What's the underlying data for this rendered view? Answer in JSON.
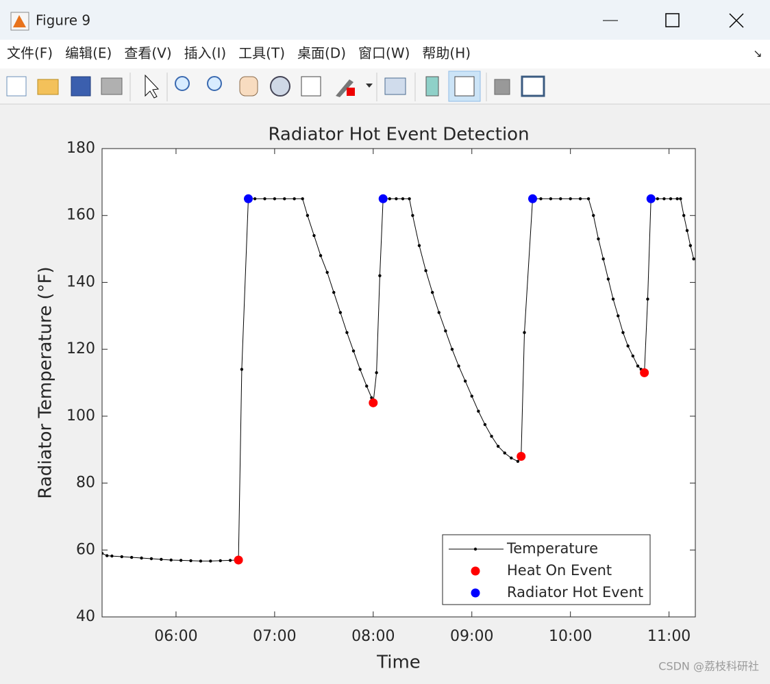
{
  "window": {
    "title": "Figure 9",
    "menu": [
      "文件(F)",
      "编辑(E)",
      "查看(V)",
      "插入(I)",
      "工具(T)",
      "桌面(D)",
      "窗口(W)",
      "帮助(H)"
    ]
  },
  "watermark": "CSDN @荔枝科研社",
  "chart_data": {
    "type": "line",
    "title": "Radiator Hot Event Detection",
    "x_label": "Time",
    "y_label": "Radiator Temperature (°F)",
    "xlim": [
      "05:15",
      "11:16"
    ],
    "xticks": [
      "06:00",
      "07:00",
      "08:00",
      "09:00",
      "10:00",
      "11:00"
    ],
    "ylim": [
      40,
      180
    ],
    "yticks": [
      40,
      60,
      80,
      100,
      120,
      140,
      160,
      180
    ],
    "grid": false,
    "legend": "lower right",
    "series": [
      {
        "name": "Temperature",
        "color": "#000000",
        "line": true,
        "marker": "dot",
        "x": [
          "05:15",
          "05:18",
          "05:21",
          "05:27",
          "05:33",
          "05:39",
          "05:45",
          "05:51",
          "05:57",
          "06:03",
          "06:09",
          "06:15",
          "06:21",
          "06:27",
          "06:33",
          "06:38",
          "06:40",
          "06:44",
          "06:48",
          "06:54",
          "07:00",
          "07:06",
          "07:12",
          "07:17",
          "07:20",
          "07:24",
          "07:28",
          "07:32",
          "07:36",
          "07:40",
          "07:44",
          "07:48",
          "07:52",
          "07:56",
          "07:59",
          "08:00",
          "08:02",
          "08:04",
          "08:06",
          "08:10",
          "08:14",
          "08:18",
          "08:22",
          "08:24",
          "08:28",
          "08:32",
          "08:36",
          "08:40",
          "08:44",
          "08:48",
          "08:52",
          "08:56",
          "09:00",
          "09:04",
          "09:08",
          "09:12",
          "09:16",
          "09:20",
          "09:24",
          "09:28",
          "09:30",
          "09:32",
          "09:37",
          "09:42",
          "09:48",
          "09:54",
          "10:00",
          "10:06",
          "10:11",
          "10:14",
          "10:17",
          "10:20",
          "10:23",
          "10:26",
          "10:29",
          "10:32",
          "10:35",
          "10:38",
          "10:41",
          "10:43",
          "10:45",
          "10:47",
          "10:49",
          "10:53",
          "10:57",
          "11:01",
          "11:05",
          "11:07",
          "11:09",
          "11:11",
          "11:13",
          "11:15"
        ],
        "values": [
          59,
          58.3,
          58.2,
          58,
          57.8,
          57.6,
          57.4,
          57.2,
          57,
          56.9,
          56.8,
          56.7,
          56.7,
          56.8,
          56.9,
          57,
          114,
          165,
          165,
          165,
          165,
          165,
          165,
          165,
          160,
          154,
          148,
          143,
          137,
          131,
          125,
          119.5,
          114,
          109,
          105.5,
          104,
          113,
          142,
          165,
          165,
          165,
          165,
          165,
          160,
          151,
          143.5,
          137,
          131,
          125.5,
          120,
          115,
          110.5,
          106,
          101.5,
          97.5,
          94,
          91,
          89,
          87.5,
          86.5,
          88,
          125,
          165,
          165,
          165,
          165,
          165,
          165,
          165,
          160,
          153,
          147,
          141,
          135,
          130,
          125,
          121,
          118,
          115,
          114,
          113,
          135,
          165,
          165,
          165,
          165,
          165,
          165,
          160,
          155.5,
          151,
          147
        ]
      },
      {
        "name": "Heat On Event",
        "color": "#ff0000",
        "line": false,
        "marker": "circle",
        "x": [
          "06:38",
          "08:00",
          "09:30",
          "10:45"
        ],
        "values": [
          57,
          104,
          88,
          113
        ]
      },
      {
        "name": "Radiator Hot Event",
        "color": "#0000ff",
        "line": false,
        "marker": "circle",
        "x": [
          "06:44",
          "08:06",
          "09:37",
          "10:49"
        ],
        "values": [
          165,
          165,
          165,
          165
        ]
      }
    ]
  }
}
